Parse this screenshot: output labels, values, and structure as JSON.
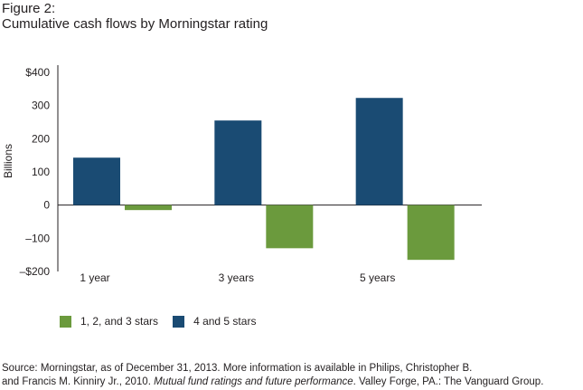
{
  "figure": {
    "label": "Figure 2:",
    "title": "Cumulative cash flows by Morningstar rating"
  },
  "chart_data": {
    "type": "bar",
    "title": "Cumulative cash flows by Morningstar rating",
    "categories": [
      "1 year",
      "3 years",
      "5 years"
    ],
    "series": [
      {
        "name": "4 and 5 stars",
        "color": "#1a4b73",
        "values": [
          143,
          255,
          323
        ]
      },
      {
        "name": "1, 2, and 3 stars",
        "color": "#6b9a3d",
        "values": [
          -15,
          -130,
          -165
        ]
      }
    ],
    "ylabel": "Billions",
    "xlabel": "",
    "ylim": [
      -200,
      400
    ],
    "yticks": [
      400,
      300,
      200,
      100,
      0,
      -100,
      -200
    ],
    "ytick_labels": [
      "$400",
      "300",
      "200",
      "100",
      "0",
      "–100",
      "–$200"
    ],
    "grid": false,
    "legend_position": "bottom-left"
  },
  "legend": [
    {
      "label": "1, 2, and 3 stars",
      "color": "#6b9a3d"
    },
    {
      "label": "4 and 5 stars",
      "color": "#1a4b73"
    }
  ],
  "source": {
    "line1": "Source: Morningstar, as of December 31, 2013. More information is available in Philips, Christopher B.",
    "line2_prefix": "and Francis M. Kinniry Jr., 2010. ",
    "line2_italic": "Mutual fund ratings and future performance",
    "line2_suffix": ". Valley Forge, PA.: The Vanguard Group."
  }
}
